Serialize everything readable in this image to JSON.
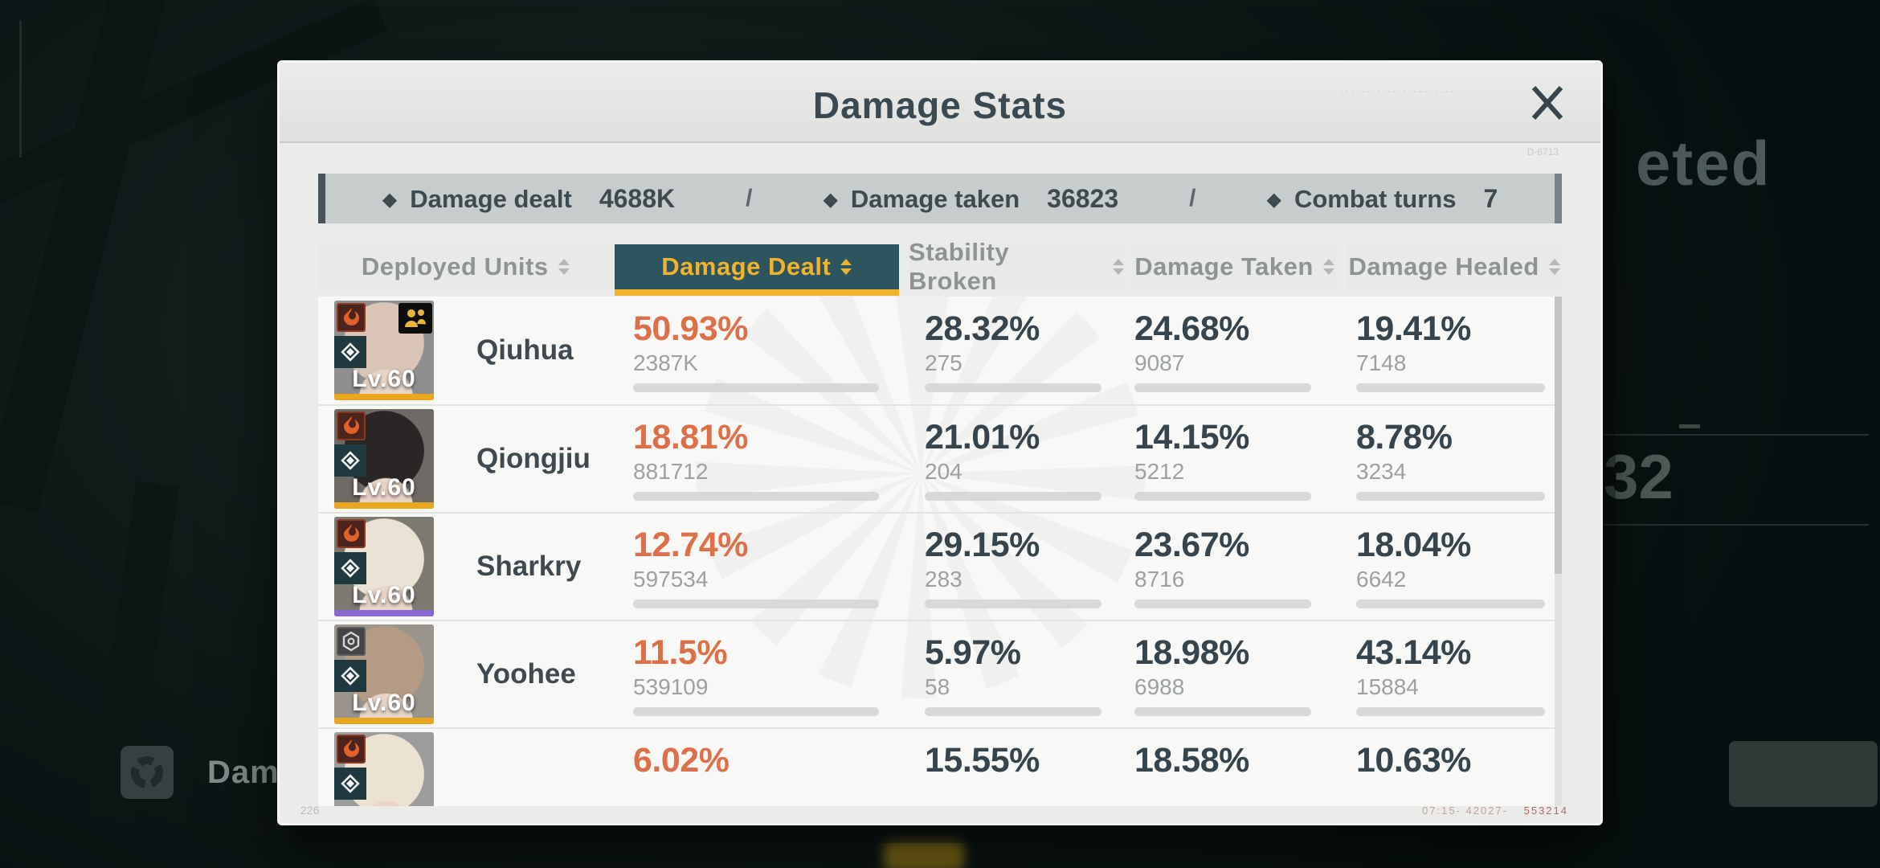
{
  "window": {
    "title": "Damage Stats",
    "watermark_top": "--- ---- -- ----- ----",
    "watermark_code": "D-6713",
    "page_code": "226",
    "uid_code_left": "07:15- 42027-",
    "uid_code_right": "553214"
  },
  "summary": {
    "separator": "/",
    "items": [
      {
        "label": "Damage dealt",
        "value": "4688K"
      },
      {
        "label": "Damage taken",
        "value": "36823"
      },
      {
        "label": "Combat turns",
        "value": "7"
      }
    ]
  },
  "tabs": [
    {
      "label": "Deployed Units",
      "selected": false
    },
    {
      "label": "Damage Dealt",
      "selected": true
    },
    {
      "label": "Stability Broken",
      "selected": false
    },
    {
      "label": "Damage Taken",
      "selected": false
    },
    {
      "label": "Damage Healed",
      "selected": false
    }
  ],
  "table": {
    "columns": [
      "Damage Dealt",
      "Stability Broken",
      "Damage Taken",
      "Damage Healed"
    ],
    "rows": [
      {
        "name": "Qiuhua",
        "level": "Lv.60",
        "element": "fire",
        "leader": true,
        "rarity_color": "#e8a71e",
        "hair": "#d9c4b6",
        "bg": "#8f8f8f",
        "stats": [
          {
            "pct": "50.93%",
            "value": "2387K",
            "fill": 50.93
          },
          {
            "pct": "28.32%",
            "value": "275",
            "fill": 28.32
          },
          {
            "pct": "24.68%",
            "value": "9087",
            "fill": 24.68
          },
          {
            "pct": "19.41%",
            "value": "7148",
            "fill": 19.41
          }
        ]
      },
      {
        "name": "Qiongjiu",
        "level": "Lv.60",
        "element": "fire",
        "leader": false,
        "rarity_color": "#e8a71e",
        "hair": "#2b2626",
        "bg": "#6e6a66",
        "stats": [
          {
            "pct": "18.81%",
            "value": "881712",
            "fill": 18.81
          },
          {
            "pct": "21.01%",
            "value": "204",
            "fill": 21.01
          },
          {
            "pct": "14.15%",
            "value": "5212",
            "fill": 14.15
          },
          {
            "pct": "8.78%",
            "value": "3234",
            "fill": 8.78
          }
        ]
      },
      {
        "name": "Sharkry",
        "level": "Lv.60",
        "element": "fire",
        "leader": false,
        "rarity_color": "#8a68d2",
        "hair": "#eae3d3",
        "bg": "#7d7a72",
        "stats": [
          {
            "pct": "12.74%",
            "value": "597534",
            "fill": 12.74
          },
          {
            "pct": "29.15%",
            "value": "283",
            "fill": 29.15
          },
          {
            "pct": "23.67%",
            "value": "8716",
            "fill": 23.67
          },
          {
            "pct": "18.04%",
            "value": "6642",
            "fill": 18.04
          }
        ]
      },
      {
        "name": "Yoohee",
        "level": "Lv.60",
        "element": "physical",
        "leader": false,
        "rarity_color": "#e8a71e",
        "hair": "#b69b84",
        "bg": "#9a948c",
        "stats": [
          {
            "pct": "11.5%",
            "value": "539109",
            "fill": 11.5
          },
          {
            "pct": "5.97%",
            "value": "58",
            "fill": 5.97
          },
          {
            "pct": "18.98%",
            "value": "6988",
            "fill": 18.98
          },
          {
            "pct": "43.14%",
            "value": "15884",
            "fill": 43.14
          }
        ]
      },
      {
        "name": "",
        "level": "",
        "element": "fire",
        "leader": false,
        "rarity_color": "#e8a71e",
        "hair": "#ece2d2",
        "bg": "#9c9c9c",
        "stats": [
          {
            "pct": "6.02%",
            "value": "",
            "fill": 6.02
          },
          {
            "pct": "15.55%",
            "value": "",
            "fill": 15.55
          },
          {
            "pct": "18.58%",
            "value": "",
            "fill": 18.58
          },
          {
            "pct": "10.63%",
            "value": "",
            "fill": 10.63
          }
        ]
      }
    ]
  },
  "background": {
    "big_text": "eted",
    "side_number": "32",
    "bottom_button_label": "Damag"
  },
  "colors": {
    "accent_orange": "#dd7048",
    "tab_selected_bg": "#2d5560",
    "tab_selected_text": "#f0b32b",
    "bar_fill": "#dd7e4b",
    "summary_bg": "#c7cccc"
  }
}
